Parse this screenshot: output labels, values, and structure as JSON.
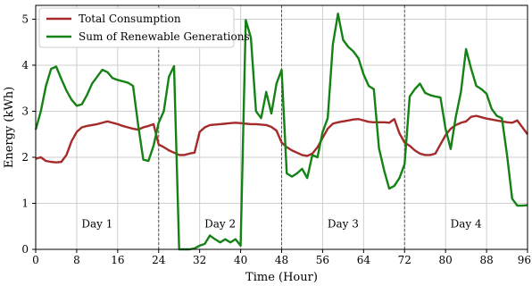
{
  "chart_data": {
    "type": "line",
    "title": "",
    "xlabel": "Time (Hour)",
    "ylabel": "Energy (kWh)",
    "xlim": [
      0,
      96
    ],
    "ylim": [
      0,
      5.3
    ],
    "xticks": [
      0,
      8,
      16,
      24,
      32,
      40,
      48,
      56,
      64,
      72,
      80,
      88,
      96
    ],
    "xtick_labels": [
      "0",
      "8",
      "16",
      "24",
      "32",
      "40",
      "48",
      "56",
      "64",
      "72",
      "80",
      "88",
      "96"
    ],
    "yticks": [
      0,
      1,
      2,
      3,
      4,
      5
    ],
    "ytick_labels": [
      "0",
      "1",
      "2",
      "3",
      "4",
      "5"
    ],
    "grid": true,
    "legend_position": "top-left",
    "day_dividers": [
      24,
      48,
      72
    ],
    "day_labels": [
      {
        "text": "Day 1",
        "x": 12,
        "y": 0.55
      },
      {
        "text": "Day 2",
        "x": 36,
        "y": 0.55
      },
      {
        "text": "Day 3",
        "x": 60,
        "y": 0.55
      },
      {
        "text": "Day 4",
        "x": 84,
        "y": 0.55
      }
    ],
    "series": [
      {
        "name": "Total Consumption",
        "color": "#a52a2a",
        "points": [
          [
            0,
            1.97
          ],
          [
            1,
            2.0
          ],
          [
            2,
            1.92
          ],
          [
            3,
            1.9
          ],
          [
            4,
            1.89
          ],
          [
            5,
            1.9
          ],
          [
            6,
            2.05
          ],
          [
            7,
            2.35
          ],
          [
            8,
            2.55
          ],
          [
            9,
            2.65
          ],
          [
            10,
            2.68
          ],
          [
            11,
            2.7
          ],
          [
            12,
            2.72
          ],
          [
            13,
            2.75
          ],
          [
            14,
            2.78
          ],
          [
            15,
            2.75
          ],
          [
            16,
            2.72
          ],
          [
            17,
            2.68
          ],
          [
            18,
            2.65
          ],
          [
            19,
            2.62
          ],
          [
            20,
            2.6
          ],
          [
            21,
            2.65
          ],
          [
            22,
            2.68
          ],
          [
            23,
            2.72
          ],
          [
            24,
            2.28
          ],
          [
            25,
            2.22
          ],
          [
            26,
            2.15
          ],
          [
            27,
            2.1
          ],
          [
            28,
            2.05
          ],
          [
            29,
            2.05
          ],
          [
            30,
            2.08
          ],
          [
            31,
            2.1
          ],
          [
            32,
            2.55
          ],
          [
            33,
            2.65
          ],
          [
            34,
            2.7
          ],
          [
            35,
            2.71
          ],
          [
            36,
            2.72
          ],
          [
            37,
            2.73
          ],
          [
            38,
            2.74
          ],
          [
            39,
            2.75
          ],
          [
            40,
            2.74
          ],
          [
            41,
            2.73
          ],
          [
            42,
            2.72
          ],
          [
            43,
            2.72
          ],
          [
            44,
            2.71
          ],
          [
            45,
            2.7
          ],
          [
            46,
            2.66
          ],
          [
            47,
            2.58
          ],
          [
            48,
            2.32
          ],
          [
            49,
            2.22
          ],
          [
            50,
            2.15
          ],
          [
            51,
            2.1
          ],
          [
            52,
            2.05
          ],
          [
            53,
            2.03
          ],
          [
            54,
            2.08
          ],
          [
            55,
            2.22
          ],
          [
            56,
            2.42
          ],
          [
            57,
            2.62
          ],
          [
            58,
            2.73
          ],
          [
            59,
            2.76
          ],
          [
            60,
            2.78
          ],
          [
            61,
            2.8
          ],
          [
            62,
            2.82
          ],
          [
            63,
            2.83
          ],
          [
            64,
            2.8
          ],
          [
            65,
            2.77
          ],
          [
            66,
            2.76
          ],
          [
            67,
            2.76
          ],
          [
            68,
            2.76
          ],
          [
            69,
            2.75
          ],
          [
            70,
            2.83
          ],
          [
            71,
            2.52
          ],
          [
            72,
            2.32
          ],
          [
            73,
            2.25
          ],
          [
            74,
            2.15
          ],
          [
            75,
            2.08
          ],
          [
            76,
            2.05
          ],
          [
            77,
            2.05
          ],
          [
            78,
            2.08
          ],
          [
            79,
            2.28
          ],
          [
            80,
            2.48
          ],
          [
            81,
            2.62
          ],
          [
            82,
            2.7
          ],
          [
            83,
            2.75
          ],
          [
            84,
            2.78
          ],
          [
            85,
            2.88
          ],
          [
            86,
            2.9
          ],
          [
            87,
            2.87
          ],
          [
            88,
            2.84
          ],
          [
            89,
            2.82
          ],
          [
            90,
            2.8
          ],
          [
            91,
            2.78
          ],
          [
            92,
            2.76
          ],
          [
            93,
            2.75
          ],
          [
            94,
            2.8
          ],
          [
            95,
            2.65
          ],
          [
            96,
            2.5
          ]
        ]
      },
      {
        "name": "Sum of Renewable Generations",
        "color": "#148214",
        "points": [
          [
            0,
            2.6
          ],
          [
            1,
            3.0
          ],
          [
            2,
            3.55
          ],
          [
            3,
            3.92
          ],
          [
            4,
            3.97
          ],
          [
            5,
            3.7
          ],
          [
            6,
            3.45
          ],
          [
            7,
            3.25
          ],
          [
            8,
            3.12
          ],
          [
            9,
            3.15
          ],
          [
            10,
            3.35
          ],
          [
            11,
            3.6
          ],
          [
            12,
            3.75
          ],
          [
            13,
            3.9
          ],
          [
            14,
            3.85
          ],
          [
            15,
            3.72
          ],
          [
            16,
            3.68
          ],
          [
            17,
            3.65
          ],
          [
            18,
            3.62
          ],
          [
            19,
            3.55
          ],
          [
            20,
            2.7
          ],
          [
            21,
            1.95
          ],
          [
            22,
            1.92
          ],
          [
            23,
            2.25
          ],
          [
            24,
            2.75
          ],
          [
            25,
            3.0
          ],
          [
            26,
            3.75
          ],
          [
            27,
            3.98
          ],
          [
            28,
            0.0
          ],
          [
            29,
            0.0
          ],
          [
            30,
            0.0
          ],
          [
            31,
            0.02
          ],
          [
            32,
            0.08
          ],
          [
            33,
            0.12
          ],
          [
            34,
            0.3
          ],
          [
            35,
            0.22
          ],
          [
            36,
            0.15
          ],
          [
            37,
            0.22
          ],
          [
            38,
            0.15
          ],
          [
            39,
            0.22
          ],
          [
            40,
            0.08
          ],
          [
            41,
            4.98
          ],
          [
            42,
            4.6
          ],
          [
            43,
            3.0
          ],
          [
            44,
            2.85
          ],
          [
            45,
            3.42
          ],
          [
            46,
            2.95
          ],
          [
            47,
            3.6
          ],
          [
            48,
            3.9
          ],
          [
            49,
            1.65
          ],
          [
            50,
            1.58
          ],
          [
            51,
            1.65
          ],
          [
            52,
            1.75
          ],
          [
            53,
            1.55
          ],
          [
            54,
            2.05
          ],
          [
            55,
            2.0
          ],
          [
            56,
            2.55
          ],
          [
            57,
            2.85
          ],
          [
            58,
            4.45
          ],
          [
            59,
            5.12
          ],
          [
            60,
            4.55
          ],
          [
            61,
            4.4
          ],
          [
            62,
            4.3
          ],
          [
            63,
            4.15
          ],
          [
            64,
            3.8
          ],
          [
            65,
            3.55
          ],
          [
            66,
            3.48
          ],
          [
            67,
            2.2
          ],
          [
            68,
            1.72
          ],
          [
            69,
            1.32
          ],
          [
            70,
            1.38
          ],
          [
            71,
            1.55
          ],
          [
            72,
            1.85
          ],
          [
            73,
            3.32
          ],
          [
            74,
            3.48
          ],
          [
            75,
            3.6
          ],
          [
            76,
            3.4
          ],
          [
            77,
            3.35
          ],
          [
            78,
            3.32
          ],
          [
            79,
            3.3
          ],
          [
            80,
            2.62
          ],
          [
            81,
            2.18
          ],
          [
            82,
            2.88
          ],
          [
            83,
            3.42
          ],
          [
            84,
            4.35
          ],
          [
            85,
            3.92
          ],
          [
            86,
            3.55
          ],
          [
            87,
            3.48
          ],
          [
            88,
            3.38
          ],
          [
            89,
            3.05
          ],
          [
            90,
            2.9
          ],
          [
            91,
            2.85
          ],
          [
            92,
            2.05
          ],
          [
            93,
            1.1
          ],
          [
            94,
            0.95
          ],
          [
            95,
            0.95
          ],
          [
            96,
            0.96
          ]
        ]
      }
    ]
  }
}
